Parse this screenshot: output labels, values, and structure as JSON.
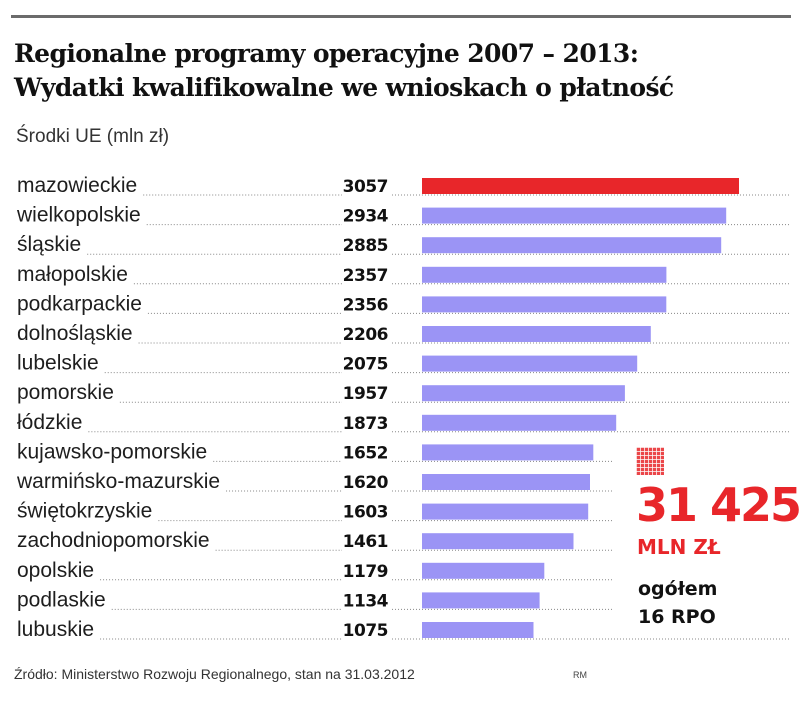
{
  "header": {
    "title_line1": "Regionalne programy operacyjne 2007 – 2013:",
    "title_line2": "Wydatki kwalifikowalne we wnioskach o płatność",
    "subtitle": "Środki UE (mln zł)"
  },
  "summary": {
    "total": "31 425",
    "unit": "MLN ZŁ",
    "line1": "ogółem",
    "line2": "16 RPO",
    "icon": "grid-icon"
  },
  "footer": {
    "source": "Źródło: Ministerstwo Rozwoju Regionalnego, stan na 31.03.2012",
    "credit": "RM"
  },
  "colors": {
    "highlight": "#e8262a",
    "bar": "#9b94f5",
    "leader": "#888888"
  },
  "chart_data": {
    "type": "bar",
    "orientation": "horizontal",
    "title": "Regionalne programy operacyjne 2007 – 2013: Wydatki kwalifikowalne we wnioskach o płatność",
    "subtitle": "Środki UE (mln zł)",
    "xlabel": "",
    "ylabel": "",
    "grid": false,
    "xlim": [
      0,
      3057
    ],
    "highlight_index": 0,
    "categories": [
      "mazowieckie",
      "wielkopolskie",
      "śląskie",
      "małopolskie",
      "podkarpackie",
      "dolnośląskie",
      "lubelskie",
      "pomorskie",
      "łódzkie",
      "kujawsko-pomorskie",
      "warmińsko-mazurskie",
      "świętokrzyskie",
      "zachodniopomorskie",
      "opolskie",
      "podlaskie",
      "lubuskie"
    ],
    "values": [
      3057,
      2934,
      2885,
      2357,
      2356,
      2206,
      2075,
      1957,
      1873,
      1652,
      1620,
      1603,
      1461,
      1179,
      1134,
      1075
    ]
  }
}
